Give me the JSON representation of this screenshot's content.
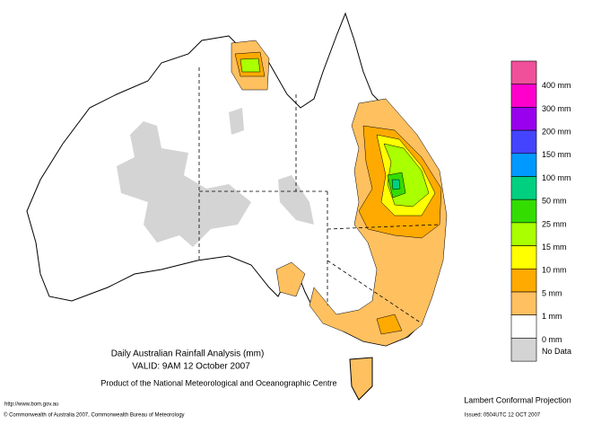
{
  "title": "Daily Australian Rainfall Analysis (mm)",
  "valid": "VALID: 9AM 12 October 2007",
  "product": "Product of the National Meteorological and Oceanographic Centre",
  "url": "http://www.bom.gov.au",
  "copyright": "© Commonwealth of Australia 2007, Commonwealth Bureau of Meteorology",
  "projection": "Lambert Conformal Projection",
  "issued": "Issued: 0504UTC 12 OCT 2007",
  "legend": {
    "colors": [
      "#f0509a",
      "#ff00cc",
      "#9900ee",
      "#4444ff",
      "#0099ff",
      "#00d080",
      "#33dd00",
      "#aaff00",
      "#ffff00",
      "#ffaa00",
      "#ffc060",
      "#ffffff",
      "#d4d4d4"
    ],
    "labels": [
      "400 mm",
      "300 mm",
      "200 mm",
      "150 mm",
      "100 mm",
      "50 mm",
      "25 mm",
      "15 mm",
      "10 mm",
      "5 mm",
      "1 mm",
      "0 mm",
      "No Data"
    ]
  }
}
